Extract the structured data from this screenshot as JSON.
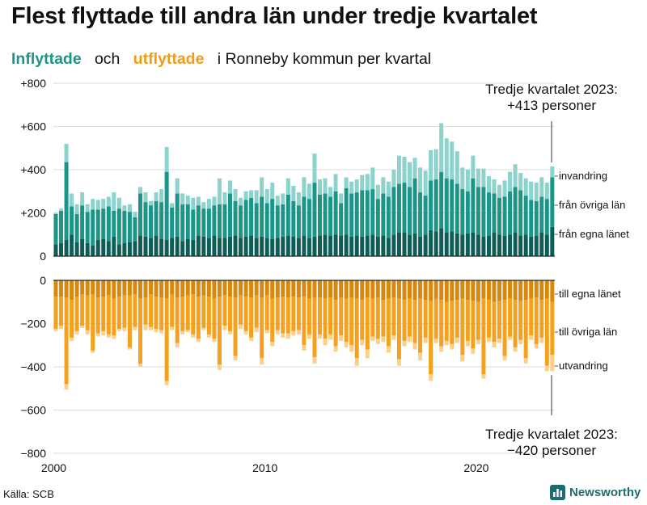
{
  "title": "Flest flyttade till andra län under tredje kvartalet",
  "subtitle": {
    "inflow_label": "Inflyttade",
    "and": "och",
    "outflow_label": "utflyttade",
    "rest": "i Ronneby  kommun  per  kvartal"
  },
  "source": "Källa: SCB",
  "brand": "Newsworthy",
  "colors": {
    "in_egna": "#0d5c56",
    "in_ovriga": "#1a9588",
    "in_invandring": "#8dd3cd",
    "out_egna": "#d9880f",
    "out_ovriga": "#f5a01e",
    "out_utvandring": "#fbd08a",
    "grid": "#dddddd",
    "axis": "#222222"
  },
  "chart_data": {
    "type": "bar",
    "stacked": true,
    "x_start": "2000 Q1",
    "x_end": "2023 Q3",
    "x_ticks": [
      "2000",
      "2010",
      "2020"
    ],
    "y_ticks": [
      "+800",
      "+600",
      "+400",
      "+200",
      "0",
      "0",
      "−200",
      "−400",
      "−600",
      "−800"
    ],
    "ylim_inflow": [
      0,
      800
    ],
    "ylim_outflow": [
      -800,
      0
    ],
    "legend_inflow": [
      "invandring",
      "från övriga län",
      "från egna länet"
    ],
    "legend_outflow": [
      "till egna länet",
      "till övriga län",
      "utvandring"
    ],
    "series": [
      {
        "name": "från egna länet",
        "values": [
          55,
          60,
          75,
          100,
          65,
          80,
          60,
          50,
          75,
          80,
          70,
          90,
          55,
          60,
          65,
          70,
          95,
          90,
          85,
          95,
          80,
          75,
          85,
          90,
          70,
          80,
          75,
          95,
          90,
          85,
          95,
          85,
          85,
          90,
          95,
          85,
          90,
          95,
          85,
          90,
          85,
          80,
          85,
          90,
          95,
          90,
          85,
          95,
          85,
          90,
          95,
          100,
          95,
          100,
          95,
          100,
          90,
          95,
          90,
          95,
          100,
          90,
          95,
          85,
          100,
          110,
          110,
          100,
          105,
          90,
          100,
          120,
          115,
          130,
          110,
          115,
          105,
          100,
          105,
          110,
          100,
          90,
          95,
          110,
          100,
          95,
          100,
          110,
          95,
          100,
          90,
          95,
          110,
          100,
          135
        ]
      },
      {
        "name": "från övriga län",
        "values": [
          140,
          150,
          360,
          130,
          130,
          155,
          145,
          165,
          140,
          140,
          160,
          120,
          165,
          150,
          140,
          110,
          195,
          160,
          150,
          160,
          170,
          315,
          140,
          200,
          170,
          160,
          140,
          140,
          130,
          135,
          140,
          155,
          155,
          200,
          160,
          150,
          170,
          175,
          160,
          185,
          160,
          185,
          150,
          150,
          190,
          165,
          150,
          180,
          180,
          250,
          190,
          190,
          180,
          200,
          150,
          215,
          200,
          200,
          215,
          210,
          210,
          175,
          195,
          190,
          220,
          225,
          230,
          220,
          255,
          205,
          180,
          230,
          240,
          260,
          250,
          240,
          230,
          210,
          195,
          250,
          220,
          230,
          200,
          180,
          170,
          180,
          200,
          210,
          210,
          180,
          170,
          160,
          165,
          165,
          230
        ]
      },
      {
        "name": "invandring",
        "values": [
          5,
          10,
          85,
          60,
          45,
          60,
          35,
          50,
          45,
          45,
          45,
          85,
          50,
          25,
          35,
          25,
          30,
          45,
          20,
          40,
          60,
          115,
          20,
          70,
          50,
          40,
          55,
          40,
          30,
          45,
          40,
          120,
          55,
          60,
          55,
          35,
          40,
          35,
          60,
          90,
          65,
          75,
          45,
          50,
          75,
          70,
          60,
          90,
          70,
          135,
          70,
          70,
          45,
          80,
          45,
          50,
          55,
          60,
          70,
          75,
          100,
          65,
          75,
          70,
          80,
          130,
          120,
          115,
          95,
          115,
          115,
          140,
          140,
          225,
          185,
          175,
          150,
          100,
          100,
          105,
          85,
          85,
          75,
          65,
          60,
          75,
          90,
          105,
          80,
          80,
          85,
          85,
          90,
          75,
          50
        ]
      },
      {
        "name": "till egna länet",
        "values": [
          75,
          75,
          80,
          90,
          75,
          65,
          70,
          65,
          80,
          75,
          70,
          85,
          75,
          70,
          70,
          65,
          85,
          80,
          65,
          75,
          80,
          85,
          65,
          80,
          75,
          70,
          65,
          75,
          70,
          75,
          85,
          75,
          70,
          75,
          80,
          70,
          75,
          80,
          70,
          80,
          70,
          85,
          80,
          75,
          80,
          75,
          80,
          75,
          85,
          80,
          80,
          85,
          80,
          90,
          80,
          85,
          80,
          85,
          90,
          80,
          85,
          80,
          90,
          85,
          80,
          85,
          90,
          85,
          90,
          85,
          90,
          95,
          85,
          90,
          100,
          95,
          90,
          85,
          90,
          95,
          100,
          85,
          90,
          100,
          95,
          90,
          85,
          90,
          95,
          90,
          85,
          80,
          90,
          85,
          100
        ]
      },
      {
        "name": "till övriga län",
        "values": [
          150,
          135,
          400,
          175,
          160,
          145,
          160,
          260,
          165,
          160,
          180,
          170,
          150,
          150,
          240,
          150,
          300,
          125,
          150,
          150,
          150,
          380,
          150,
          210,
          160,
          160,
          185,
          195,
          150,
          175,
          185,
          315,
          140,
          160,
          270,
          135,
          160,
          185,
          150,
          280,
          160,
          200,
          150,
          170,
          165,
          160,
          150,
          225,
          165,
          275,
          170,
          185,
          170,
          215,
          175,
          200,
          220,
          275,
          185,
          240,
          175,
          190,
          170,
          220,
          175,
          280,
          190,
          175,
          200,
          250,
          175,
          340,
          185,
          215,
          180,
          200,
          175,
          260,
          190,
          220,
          175,
          350,
          175,
          185,
          175,
          260,
          175,
          220,
          180,
          270,
          170,
          215,
          175,
          310,
          245
        ]
      },
      {
        "name": "utvandring",
        "values": [
          10,
          15,
          25,
          15,
          15,
          10,
          20,
          10,
          15,
          20,
          15,
          15,
          10,
          15,
          10,
          15,
          15,
          25,
          15,
          15,
          15,
          20,
          15,
          20,
          15,
          10,
          15,
          15,
          10,
          15,
          15,
          25,
          20,
          15,
          20,
          20,
          15,
          15,
          20,
          30,
          15,
          20,
          20,
          20,
          25,
          20,
          20,
          25,
          20,
          30,
          20,
          30,
          25,
          25,
          25,
          25,
          30,
          35,
          25,
          40,
          20,
          25,
          25,
          30,
          20,
          30,
          25,
          25,
          30,
          35,
          25,
          30,
          20,
          25,
          20,
          25,
          25,
          30,
          25,
          25,
          20,
          20,
          20,
          25,
          20,
          20,
          15,
          20,
          20,
          25,
          20,
          20,
          25,
          25,
          75
        ]
      }
    ],
    "annotations": [
      {
        "label": "Tredje kvartalet 2023:",
        "value": "+413 personer"
      },
      {
        "label": "Tredje kvartalet 2023:",
        "value": "−420 personer"
      }
    ]
  }
}
